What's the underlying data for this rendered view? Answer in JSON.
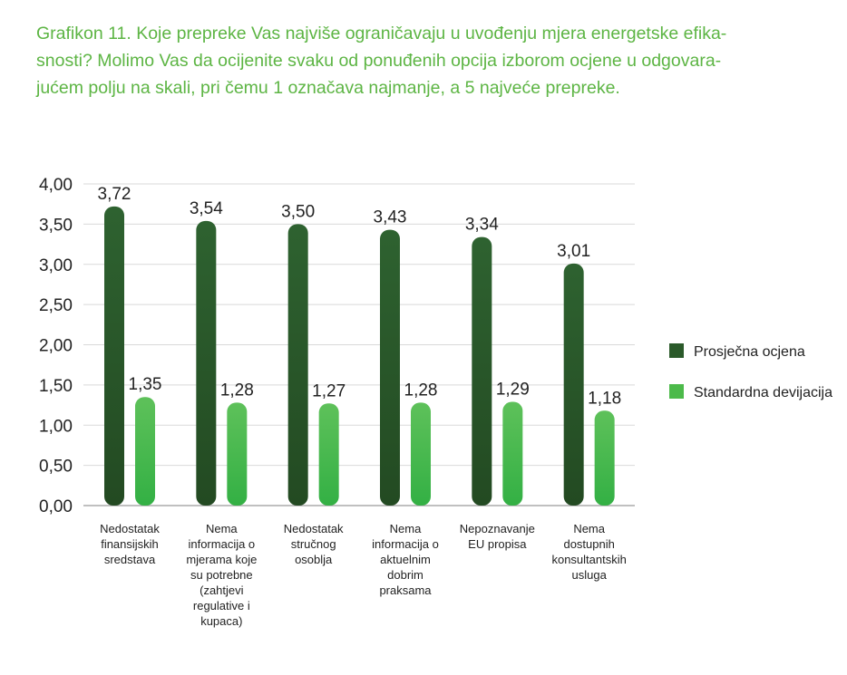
{
  "title_lines": [
    "Grafikon 11. Koje prepreke Vas najviše ograničavaju u uvođenju mjera energetske efika-",
    "snosti? Molimo Vas da ocijenite svaku od ponuđenih opcija izborom ocjene u odgovara-",
    "jućem polju na skali, pri čemu 1 označava najmanje, a 5 najveće prepreke."
  ],
  "chart_data": {
    "type": "bar",
    "title": "Grafikon 11. Koje prepreke Vas najviše ograničavaju u uvođenju mjera energetske efikasnosti? Molimo Vas da ocijenite svaku od ponuđenih opcija izborom ocjene u odgovarajućem polju na skali, pri čemu 1 označava najmanje, a 5 najveće prepreke.",
    "xlabel": "",
    "ylabel": "",
    "ylim": [
      0,
      4
    ],
    "yticks": [
      "0,00",
      "0,50",
      "1,00",
      "1,50",
      "2,00",
      "2,50",
      "3,00",
      "3,50",
      "4,00"
    ],
    "grid": true,
    "legend_position": "right",
    "categories": [
      [
        "Nedostatak",
        "finansijskih",
        "sredstava"
      ],
      [
        "Nema",
        "informacija o",
        "mjerama koje",
        "su potrebne",
        "(zahtjevi",
        "regulative i",
        "kupaca)"
      ],
      [
        "Nedostatak",
        "stručnog",
        "osoblja"
      ],
      [
        "Nema",
        "informacija o",
        "aktuelnim",
        "dobrim",
        "praksama"
      ],
      [
        "Nepoznavanje",
        "EU propisa"
      ],
      [
        "Nema",
        "dostupnih",
        "konsultantskih",
        "usluga"
      ]
    ],
    "series": [
      {
        "name": "Prosječna ocjena",
        "color": "#2b5a2a",
        "values": [
          3.72,
          3.54,
          3.5,
          3.43,
          3.34,
          3.01
        ],
        "labels": [
          "3,72",
          "3,54",
          "3,50",
          "3,43",
          "3,34",
          "3,01"
        ]
      },
      {
        "name": "Standardna devijacija",
        "color": "#4cba4a",
        "values": [
          1.35,
          1.28,
          1.27,
          1.28,
          1.29,
          1.18
        ],
        "labels": [
          "1,35",
          "1,28",
          "1,27",
          "1,28",
          "1,29",
          "1,18"
        ]
      }
    ]
  }
}
